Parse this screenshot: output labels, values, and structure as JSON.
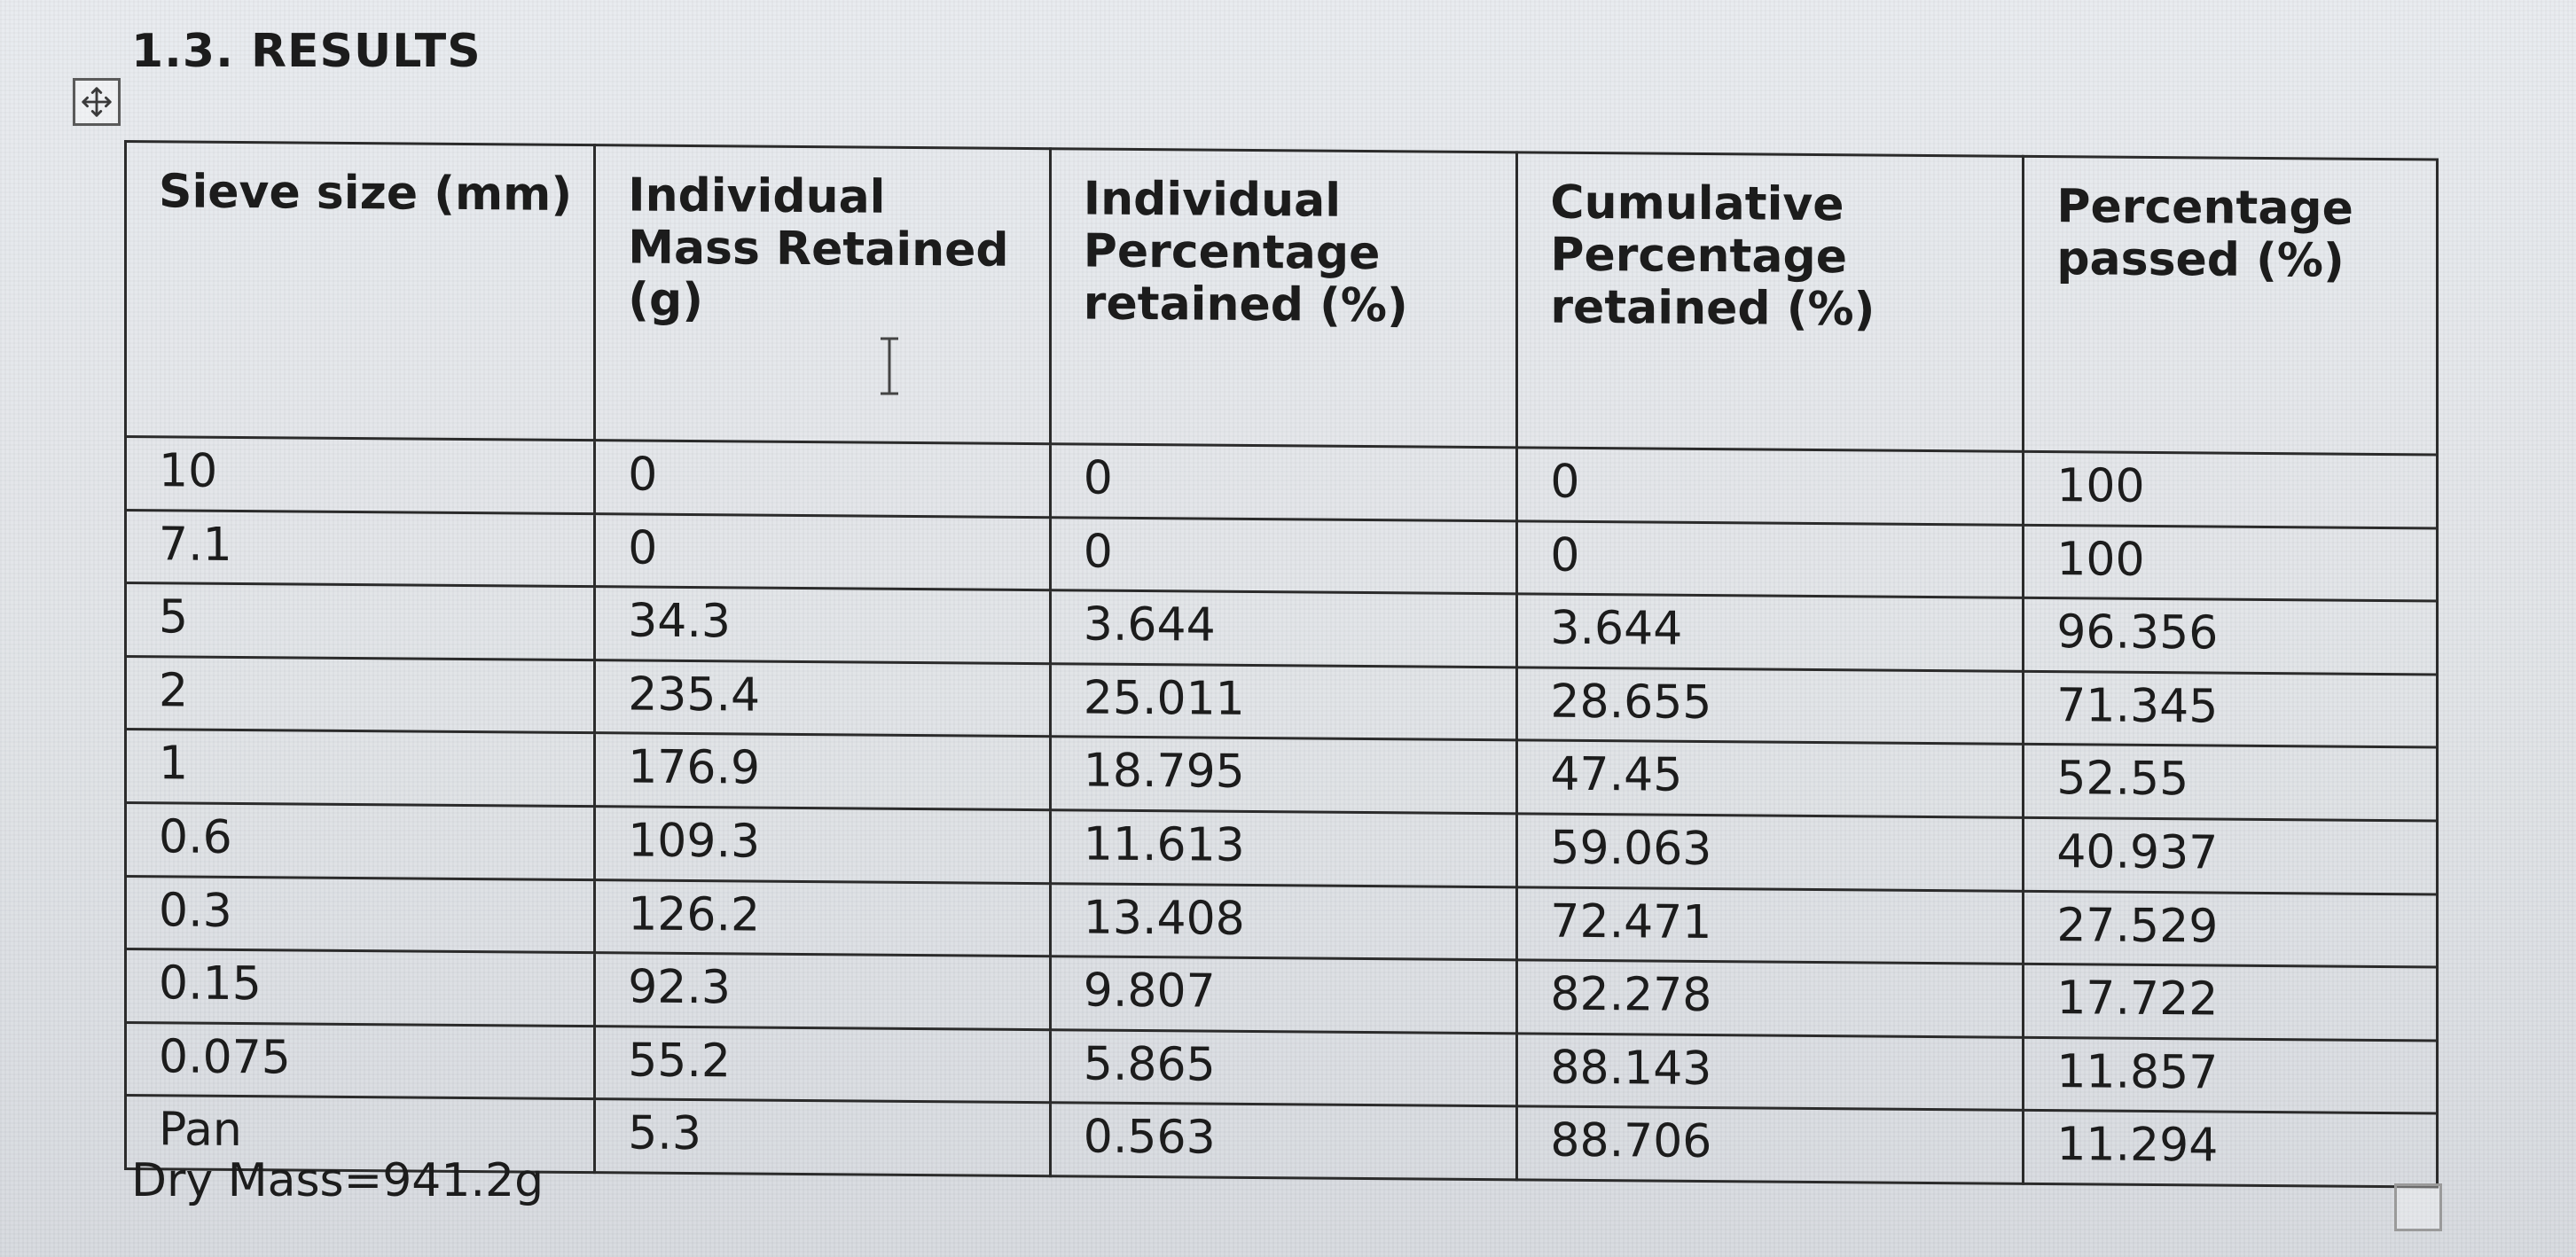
{
  "document": {
    "heading": "1.3. RESULTS",
    "footer": "Dry Mass=941.2g"
  },
  "table": {
    "headers": [
      "Sieve size (mm)",
      "Individual Mass Retained (g)",
      "Individual Percentage retained (%)",
      "Cumulative Percentage retained (%)",
      "Percentage passed (%)"
    ],
    "rows": [
      [
        "10",
        "0",
        "0",
        "0",
        "100"
      ],
      [
        "7.1",
        "0",
        "0",
        "0",
        "100"
      ],
      [
        "5",
        "34.3",
        "3.644",
        "3.644",
        "96.356"
      ],
      [
        "2",
        "235.4",
        "25.011",
        "28.655",
        "71.345"
      ],
      [
        "1",
        "176.9",
        "18.795",
        "47.45",
        "52.55"
      ],
      [
        "0.6",
        "109.3",
        "11.613",
        "59.063",
        "40.937"
      ],
      [
        "0.3",
        "126.2",
        "13.408",
        "72.471",
        "27.529"
      ],
      [
        "0.15",
        "92.3",
        "9.807",
        "82.278",
        "17.722"
      ],
      [
        "0.075",
        "55.2",
        "5.865",
        "88.143",
        "11.857"
      ],
      [
        "Pan",
        "5.3",
        "0.563",
        "88.706",
        "11.294"
      ]
    ]
  },
  "icons": {
    "move_handle": "table-move-icon",
    "resize_handle": "table-resize-icon",
    "cursor": "text-cursor-icon"
  }
}
